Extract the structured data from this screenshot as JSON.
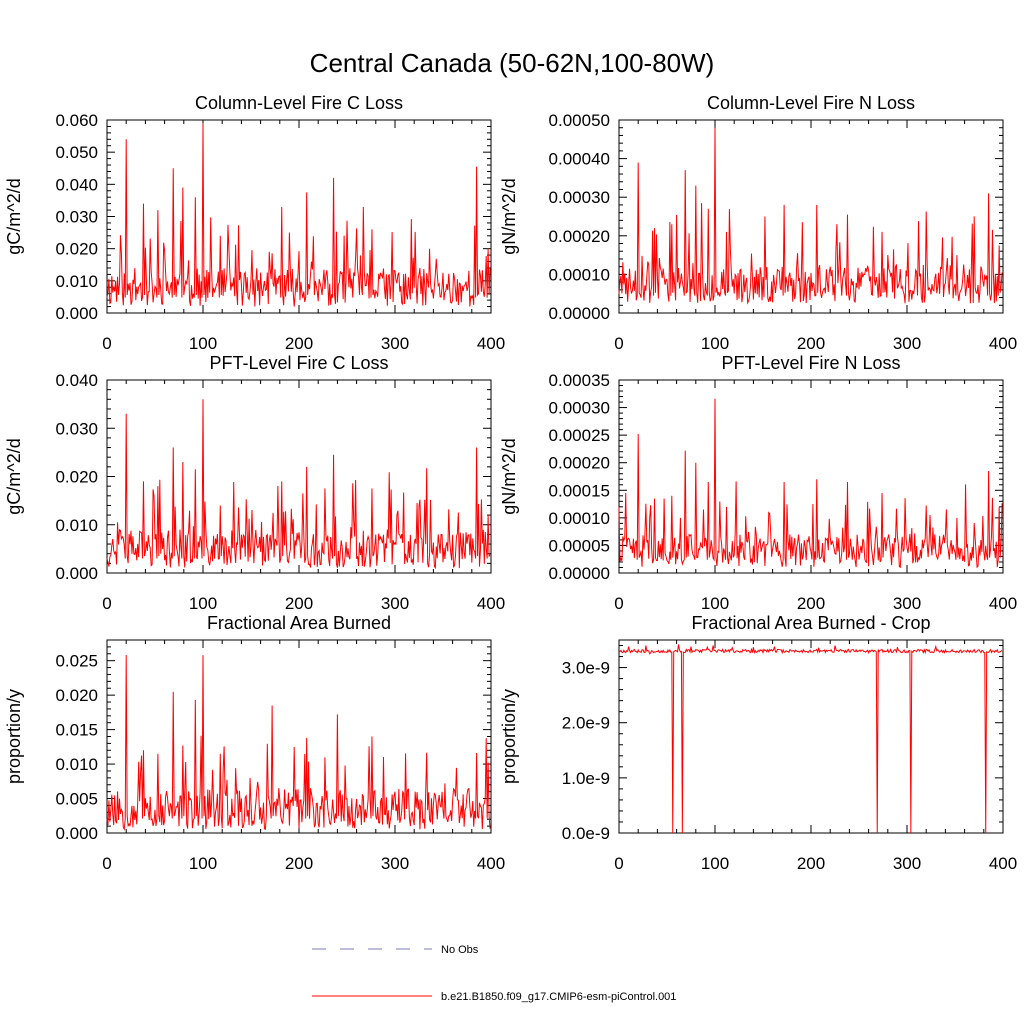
{
  "title": "Central Canada (50-62N,100-80W)",
  "legend": [
    {
      "label": "No Obs",
      "color": "#7a7ab8",
      "style": "dashed"
    },
    {
      "label": "b.e21.B1850.f09_g17.CMIP6-esm-piControl.001",
      "color": "#ff0000",
      "style": "solid"
    }
  ],
  "chart_data": [
    {
      "type": "line",
      "title": "Column-Level Fire C Loss",
      "ylabel": "gC/m^2/d",
      "xlim": [
        0,
        400
      ],
      "ylim": [
        0,
        0.06
      ],
      "xticks": [
        "0",
        "100",
        "200",
        "300",
        "400"
      ],
      "yticks": [
        "0.000",
        "0.010",
        "0.020",
        "0.030",
        "0.040",
        "0.050",
        "0.060"
      ],
      "series": [
        {
          "name": "b.e21.B1850.f09_g17.CMIP6-esm-piControl.001",
          "color": "#ff0000",
          "baseline": 0.008,
          "noise": 0.006,
          "min": 0.0015,
          "seed": 11,
          "peaks": [
            [
              20,
              0.054
            ],
            [
              38,
              0.034
            ],
            [
              53,
              0.032
            ],
            [
              69,
              0.045
            ],
            [
              79,
              0.039
            ],
            [
              92,
              0.036
            ],
            [
              100,
              0.059
            ],
            [
              118,
              0.024
            ],
            [
              182,
              0.033
            ],
            [
              208,
              0.0375
            ],
            [
              236,
              0.042
            ],
            [
              276,
              0.026
            ],
            [
              385,
              0.0455
            ],
            [
              397,
              0.02
            ]
          ]
        }
      ]
    },
    {
      "type": "line",
      "title": "Column-Level Fire N Loss",
      "ylabel": "gN/m^2/d",
      "xlim": [
        0,
        400
      ],
      "ylim": [
        0,
        0.0005
      ],
      "xticks": [
        "0",
        "100",
        "200",
        "300",
        "400"
      ],
      "yticks": [
        "0.00000",
        "0.00010",
        "0.00020",
        "0.00030",
        "0.00040",
        "0.00050"
      ],
      "series": [
        {
          "name": "b.e21.B1850.f09_g17.CMIP6-esm-piControl.001",
          "color": "#ff0000",
          "baseline": 7.5e-05,
          "noise": 5e-05,
          "min": 1e-05,
          "seed": 23,
          "peaks": [
            [
              20,
              0.00039
            ],
            [
              37,
              0.00022
            ],
            [
              55,
              0.00023
            ],
            [
              69,
              0.00037
            ],
            [
              80,
              0.00033
            ],
            [
              93,
              0.00027
            ],
            [
              100,
              0.00048
            ],
            [
              112,
              0.00021
            ],
            [
              172,
              0.00028
            ],
            [
              206,
              0.00028
            ],
            [
              238,
              0.000255
            ],
            [
              274,
              0.00021
            ],
            [
              352,
              0.00015
            ],
            [
              385,
              0.00031
            ],
            [
              396,
              0.000175
            ]
          ]
        }
      ]
    },
    {
      "type": "line",
      "title": "PFT-Level Fire C Loss",
      "ylabel": "gC/m^2/d",
      "xlim": [
        0,
        400
      ],
      "ylim": [
        0,
        0.04
      ],
      "xticks": [
        "0",
        "100",
        "200",
        "300",
        "400"
      ],
      "yticks": [
        "0.000",
        "0.010",
        "0.020",
        "0.030",
        "0.040"
      ],
      "series": [
        {
          "name": "b.e21.B1850.f09_g17.CMIP6-esm-piControl.001",
          "color": "#ff0000",
          "baseline": 0.005,
          "noise": 0.004,
          "min": 0.0008,
          "seed": 37,
          "peaks": [
            [
              20,
              0.033
            ],
            [
              38,
              0.019
            ],
            [
              53,
              0.018
            ],
            [
              69,
              0.026
            ],
            [
              79,
              0.023
            ],
            [
              92,
              0.0215
            ],
            [
              100,
              0.036
            ],
            [
              118,
              0.014
            ],
            [
              182,
              0.019
            ],
            [
              208,
              0.022
            ],
            [
              236,
              0.0245
            ],
            [
              276,
              0.0175
            ],
            [
              385,
              0.026
            ],
            [
              397,
              0.012
            ]
          ]
        }
      ]
    },
    {
      "type": "line",
      "title": "PFT-Level Fire N Loss",
      "ylabel": "gN/m^2/d",
      "xlim": [
        0,
        400
      ],
      "ylim": [
        0,
        0.00035
      ],
      "xticks": [
        "0",
        "100",
        "200",
        "300",
        "400"
      ],
      "yticks": [
        "0.00000",
        "0.00005",
        "0.00010",
        "0.00015",
        "0.00020",
        "0.00025",
        "0.00030",
        "0.00035"
      ],
      "series": [
        {
          "name": "b.e21.B1850.f09_g17.CMIP6-esm-piControl.001",
          "color": "#ff0000",
          "baseline": 4e-05,
          "noise": 3e-05,
          "min": 6e-06,
          "seed": 41,
          "peaks": [
            [
              20,
              0.000252
            ],
            [
              37,
              0.000135
            ],
            [
              55,
              0.00014
            ],
            [
              69,
              0.000222
            ],
            [
              80,
              0.0002
            ],
            [
              93,
              0.000165
            ],
            [
              100,
              0.000316
            ],
            [
              112,
              0.00012
            ],
            [
              172,
              0.000165
            ],
            [
              206,
              0.00017
            ],
            [
              238,
              0.000165
            ],
            [
              274,
              0.000145
            ],
            [
              352,
              0.0001
            ],
            [
              385,
              0.000185
            ],
            [
              396,
              0.00012
            ]
          ]
        }
      ]
    },
    {
      "type": "line",
      "title": "Fractional Area Burned",
      "ylabel": "proportion/y",
      "xlim": [
        0,
        400
      ],
      "ylim": [
        0,
        0.028
      ],
      "xticks": [
        "0",
        "100",
        "200",
        "300",
        "400"
      ],
      "yticks": [
        "0.000",
        "0.005",
        "0.010",
        "0.015",
        "0.020",
        "0.025"
      ],
      "series": [
        {
          "name": "b.e21.B1850.f09_g17.CMIP6-esm-piControl.001",
          "color": "#ff0000",
          "baseline": 0.0035,
          "noise": 0.003,
          "min": 0.0003,
          "seed": 53,
          "peaks": [
            [
              20,
              0.0258
            ],
            [
              38,
              0.012
            ],
            [
              53,
              0.0115
            ],
            [
              69,
              0.0205
            ],
            [
              79,
              0.0127
            ],
            [
              92,
              0.0193
            ],
            [
              100,
              0.0258
            ],
            [
              118,
              0.0115
            ],
            [
              172,
              0.0185
            ],
            [
              208,
              0.0138
            ],
            [
              240,
              0.0172
            ],
            [
              276,
              0.014
            ],
            [
              352,
              0.0072
            ],
            [
              385,
              0.0116
            ],
            [
              397,
              0.0102
            ]
          ]
        }
      ]
    },
    {
      "type": "line",
      "title": "Fractional Area Burned - Crop",
      "ylabel": "proportion/y",
      "xlim": [
        0,
        400
      ],
      "ylim": [
        0,
        3.5e-09
      ],
      "xticks": [
        "0",
        "100",
        "200",
        "300",
        "400"
      ],
      "yticks": [
        "0.0e-9",
        "1.0e-9",
        "2.0e-9",
        "3.0e-9"
      ],
      "ytick_values": [
        0,
        1e-09,
        2e-09,
        3e-09
      ],
      "series": [
        {
          "name": "b.e21.B1850.f09_g17.CMIP6-esm-piControl.001",
          "color": "#ff0000",
          "constant": 3.3e-09,
          "jitter": 3e-11,
          "seed": 67,
          "bumps": [
            [
              10,
              3.38e-09
            ],
            [
              28,
              3.4e-09
            ],
            [
              32,
              3.25e-09
            ],
            [
              62,
              3.42e-09
            ],
            [
              75,
              3.38e-09
            ],
            [
              92,
              3.37e-09
            ],
            [
              98,
              3.4e-09
            ],
            [
              118,
              3.36e-09
            ],
            [
              140,
              3.37e-09
            ],
            [
              162,
              3.38e-09
            ],
            [
              208,
              3.36e-09
            ],
            [
              225,
              3.4e-09
            ],
            [
              290,
              3.37e-09
            ],
            [
              330,
              3.38e-09
            ]
          ],
          "dropouts": [
            56,
            66,
            269,
            304,
            382
          ]
        }
      ]
    }
  ]
}
